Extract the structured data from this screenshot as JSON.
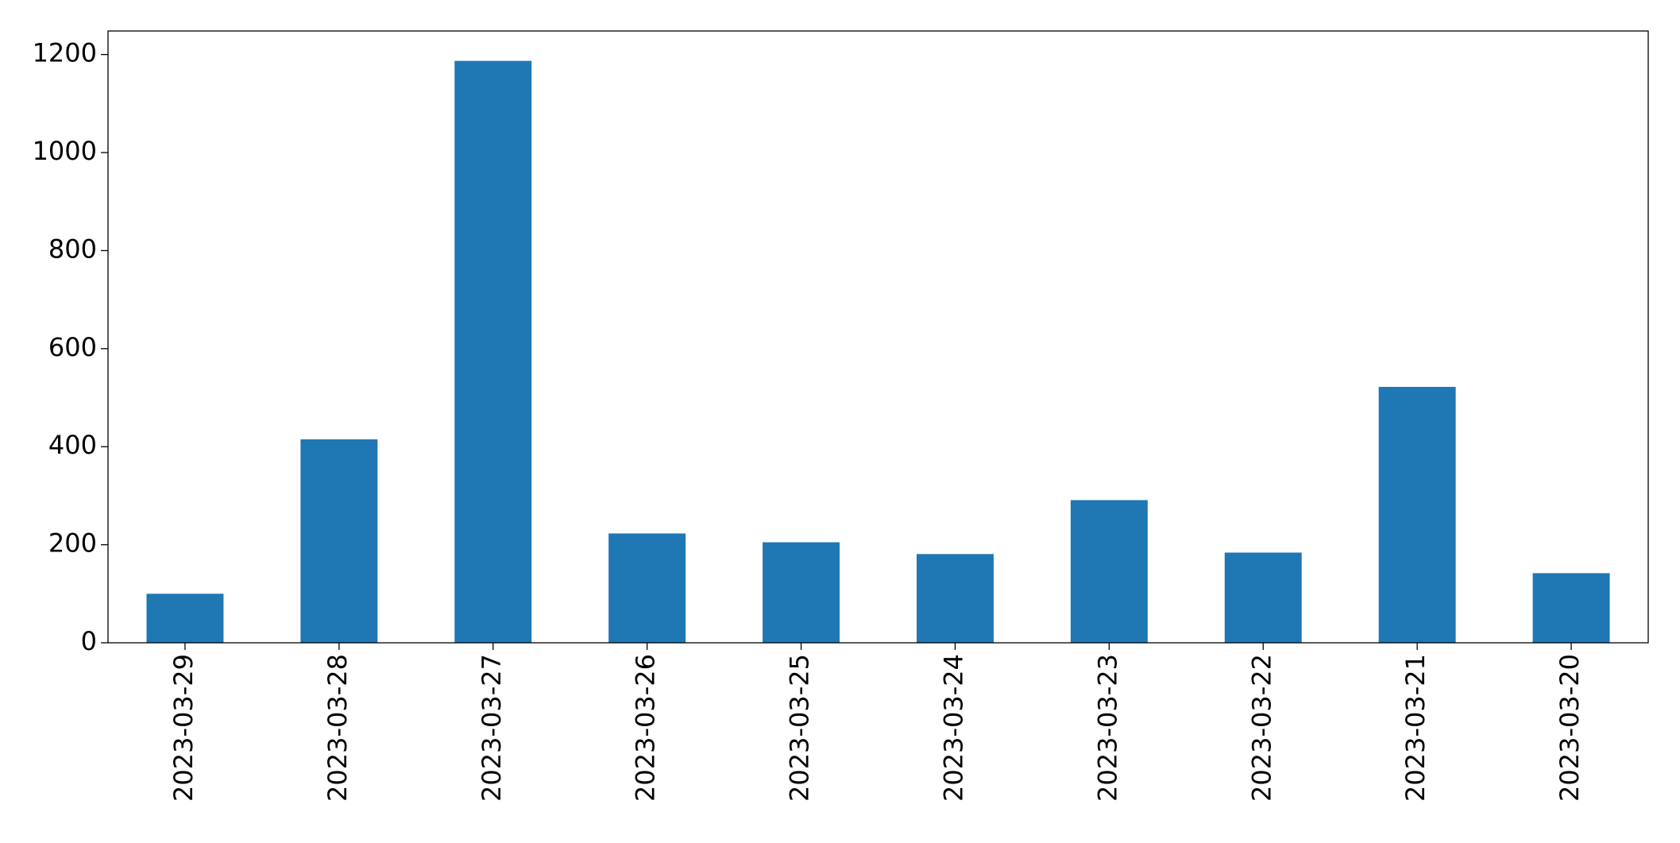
{
  "chart_data": {
    "type": "bar",
    "categories": [
      "2023-03-29",
      "2023-03-28",
      "2023-03-27",
      "2023-03-26",
      "2023-03-25",
      "2023-03-24",
      "2023-03-23",
      "2023-03-22",
      "2023-03-21",
      "2023-03-20"
    ],
    "values": [
      100,
      415,
      1187,
      223,
      205,
      181,
      291,
      184,
      522,
      142
    ],
    "color": "#1f77b4",
    "ylim": [
      0,
      1248
    ],
    "yticks": [
      0,
      200,
      400,
      600,
      800,
      1000,
      1200
    ],
    "grid": false
  }
}
